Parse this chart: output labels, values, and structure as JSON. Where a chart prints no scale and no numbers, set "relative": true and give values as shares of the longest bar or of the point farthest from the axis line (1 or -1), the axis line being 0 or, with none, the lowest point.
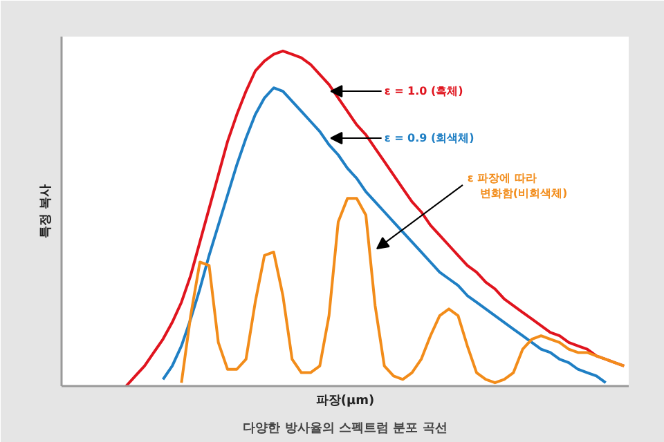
{
  "chart_data": {
    "type": "line",
    "title": "다양한 방사율의 스펙트럼 분포 곡선",
    "xlabel": "파장(μm)",
    "ylabel": "특정 복사",
    "relative": true,
    "marker": "none",
    "line_style": "solid",
    "categories": [
      null,
      null,
      null,
      null,
      null,
      null,
      null,
      null,
      null,
      null,
      null,
      null,
      null,
      null,
      null,
      null,
      null,
      null,
      null,
      null,
      null,
      null,
      null,
      null,
      null,
      null,
      null,
      null,
      null,
      null,
      null,
      null,
      null,
      null,
      null,
      null,
      null,
      null,
      null,
      null,
      null,
      null,
      null,
      null,
      null,
      null,
      null,
      null,
      null,
      null,
      null,
      null,
      null,
      null,
      null,
      null,
      null,
      null,
      null,
      null,
      null,
      null
    ],
    "series": [
      {
        "name": "ε = 1.0 (흑체)",
        "color": "#e0141e",
        "values": [
          null,
          null,
          null,
          null,
          null,
          null,
          null,
          0.0,
          0.03,
          0.06,
          0.1,
          0.14,
          0.19,
          0.25,
          0.33,
          0.43,
          0.53,
          0.63,
          0.73,
          0.81,
          0.88,
          0.94,
          0.97,
          0.99,
          1.0,
          0.99,
          0.98,
          0.96,
          0.93,
          0.9,
          0.86,
          0.82,
          0.78,
          0.75,
          0.71,
          0.67,
          0.63,
          0.59,
          0.55,
          0.52,
          0.48,
          0.45,
          0.42,
          0.39,
          0.36,
          0.34,
          0.31,
          0.29,
          0.26,
          0.24,
          0.22,
          0.2,
          0.18,
          0.16,
          0.15,
          0.13,
          0.12,
          0.11,
          0.09,
          0.08,
          0.07,
          0.06
        ]
      },
      {
        "name": "ε = 0.9 (회색체)",
        "color": "#1f7fc4",
        "values": [
          null,
          null,
          null,
          null,
          null,
          null,
          null,
          null,
          null,
          null,
          null,
          0.02,
          0.06,
          0.12,
          0.2,
          0.29,
          0.39,
          0.48,
          0.57,
          0.66,
          0.74,
          0.81,
          0.86,
          0.89,
          0.88,
          0.85,
          0.82,
          0.79,
          0.76,
          0.72,
          0.69,
          0.65,
          0.62,
          0.58,
          0.55,
          0.52,
          0.49,
          0.46,
          0.43,
          0.4,
          0.37,
          0.34,
          0.32,
          0.3,
          0.27,
          0.25,
          0.23,
          0.21,
          0.19,
          0.17,
          0.15,
          0.13,
          0.11,
          0.1,
          0.08,
          0.07,
          0.05,
          0.04,
          0.03,
          0.01,
          null,
          null
        ]
      },
      {
        "name": "ε 파장에 따라\n변화함(비회색체)",
        "color": "#f28c1a",
        "values": [
          null,
          null,
          null,
          null,
          null,
          null,
          null,
          null,
          null,
          null,
          null,
          null,
          null,
          0.01,
          0.21,
          0.37,
          0.36,
          0.13,
          0.05,
          0.05,
          0.08,
          0.25,
          0.39,
          0.4,
          0.27,
          0.08,
          0.04,
          0.04,
          0.06,
          0.21,
          0.49,
          0.56,
          0.56,
          0.51,
          0.24,
          0.06,
          0.03,
          0.02,
          0.04,
          0.08,
          0.15,
          0.21,
          0.23,
          0.21,
          0.12,
          0.04,
          0.02,
          0.01,
          0.02,
          0.04,
          0.11,
          0.14,
          0.15,
          0.14,
          0.13,
          0.11,
          0.1,
          0.1,
          0.09,
          0.08,
          0.07,
          0.06
        ]
      }
    ]
  }
}
